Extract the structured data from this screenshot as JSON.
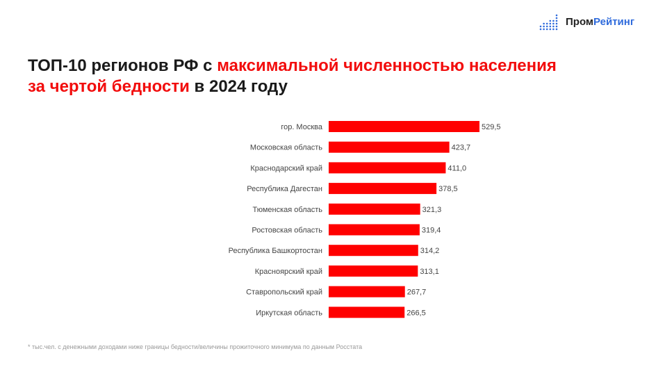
{
  "logo": {
    "part1": "Пром",
    "part2": "Рейтинг"
  },
  "title": {
    "part1": "ТОП-10 регионов РФ с ",
    "highlight1": "максимальной численностью населения",
    "highlight2": "за чертой бедности",
    "part2": " в 2024 году"
  },
  "footnote": "* тыс.чел. с денежными доходами ниже границы бедности/величины прожиточного минимума по данным Росстата",
  "colors": {
    "bar": "#ff0000",
    "accent": "#f20d0d",
    "brand": "#2f6bdc"
  },
  "chart_data": {
    "type": "bar",
    "orientation": "horizontal",
    "categories": [
      "гор. Москва",
      "Московская область",
      "Краснодарский край",
      "Республика Дагестан",
      "Тюменская область",
      "Ростовская область",
      "Республика Башкортостан",
      "Красноярский край",
      "Ставропольский край",
      "Иркутская область"
    ],
    "values": [
      529.5,
      423.7,
      411.0,
      378.5,
      321.3,
      319.4,
      314.2,
      313.1,
      267.7,
      266.5
    ],
    "value_labels": [
      "529,5",
      "423,7",
      "411,0",
      "378,5",
      "321,3",
      "319,4",
      "314,2",
      "313,1",
      "267,7",
      "266,5"
    ],
    "grid": false
  }
}
